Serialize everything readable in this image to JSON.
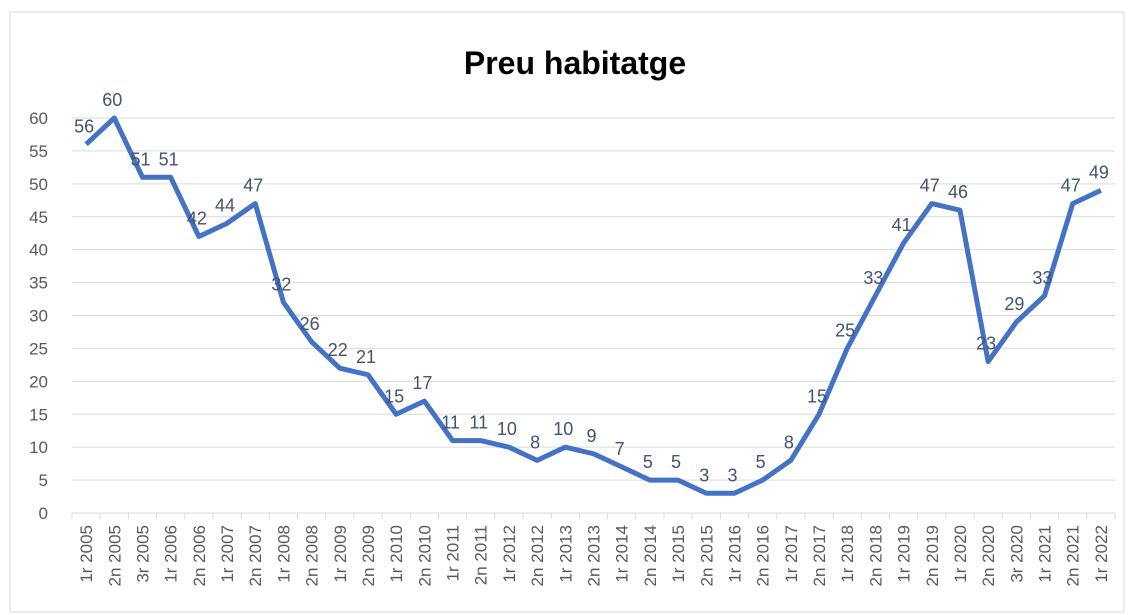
{
  "chart_data": {
    "type": "line",
    "title": "Preu habitatge",
    "categories": [
      "1r 2005",
      "2n 2005",
      "3r 2005",
      "1r 2006",
      "2n 2006",
      "1r 2007",
      "2n 2007",
      "1r 2008",
      "2n 2008",
      "1r 2009",
      "2n 2009",
      "1r 2010",
      "2n 2010",
      "1r 2011",
      "2n 2011",
      "1r 2012",
      "2n 2012",
      "1r 2013",
      "2n 2013",
      "1r 2014",
      "2n 2014",
      "1r 2015",
      "2n 2015",
      "1r 2016",
      "2n 2016",
      "1r 2017",
      "2n 2017",
      "1r 2018",
      "2n 2018",
      "1r 2019",
      "2n 2019",
      "1r 2020",
      "2n 2020",
      "3r 2020",
      "1r 2021",
      "2n 2021",
      "1r 2022"
    ],
    "values": [
      56,
      60,
      51,
      51,
      42,
      44,
      47,
      32,
      26,
      22,
      21,
      15,
      17,
      11,
      11,
      10,
      8,
      10,
      9,
      7,
      5,
      5,
      3,
      3,
      5,
      8,
      15,
      25,
      33,
      41,
      47,
      46,
      23,
      29,
      33,
      47,
      49
    ],
    "color": "#4472c4",
    "ylim": [
      0,
      60
    ],
    "yticks": [
      0,
      5,
      10,
      15,
      20,
      25,
      30,
      35,
      40,
      45,
      50,
      55,
      60
    ],
    "grid": true
  }
}
